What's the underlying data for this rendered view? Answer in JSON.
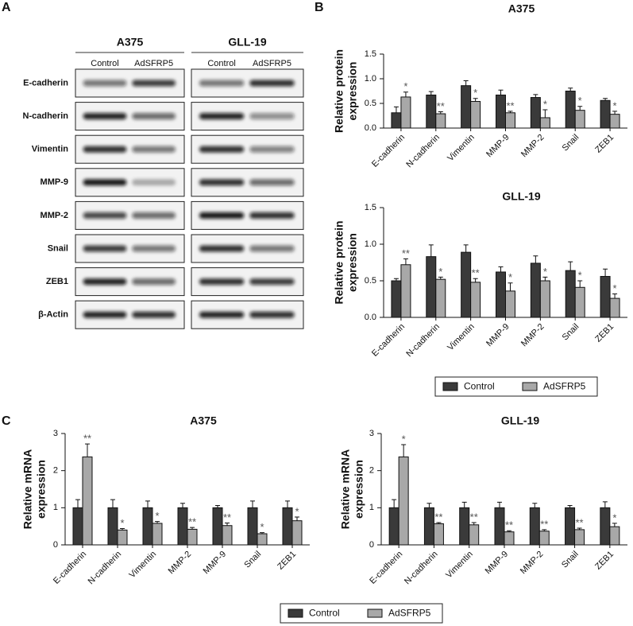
{
  "panels": [
    "A",
    "B",
    "C"
  ],
  "blot": {
    "groups": [
      {
        "name": "A375",
        "conditions": [
          "Control",
          "AdSFRP5"
        ]
      },
      {
        "name": "GLL-19",
        "conditions": [
          "Control",
          "AdSFRP5"
        ]
      }
    ],
    "proteins": [
      "E-cadherin",
      "N-cadherin",
      "Vimentin",
      "MMP-9",
      "MMP-2",
      "Snail",
      "ZEB1",
      "β-Actin"
    ]
  },
  "chart_data": [
    {
      "type": "bar",
      "title": "A375",
      "ylabel": [
        "Relative protein",
        "expression"
      ],
      "categories": [
        "E-cadherin",
        "N-cadherin",
        "Vimentin",
        "MMP-9",
        "MMP-2",
        "Snail",
        "ZEB1"
      ],
      "ylim": [
        0,
        1.5
      ],
      "yticks": [
        {
          "value": 0,
          "label": "0.0"
        },
        0.5,
        {
          "value": 1,
          "label": "1.0"
        },
        1.5
      ],
      "series": [
        {
          "name": "Control",
          "color": "#3a3a3a",
          "values": [
            0.31,
            0.67,
            0.86,
            0.67,
            0.62,
            0.75,
            0.56
          ],
          "errors": [
            0.12,
            0.07,
            0.1,
            0.1,
            0.06,
            0.06,
            0.04
          ]
        },
        {
          "name": "AdSFRP5",
          "color": "#a8a8a8",
          "values": [
            0.63,
            0.29,
            0.54,
            0.31,
            0.21,
            0.36,
            0.28
          ],
          "errors": [
            0.1,
            0.04,
            0.06,
            0.03,
            0.16,
            0.08,
            0.06
          ],
          "annotations": [
            "*",
            "**",
            "*",
            "**",
            "*",
            "*",
            "*"
          ]
        }
      ]
    },
    {
      "type": "bar",
      "title": "GLL-19",
      "ylabel": [
        "Relative protein",
        "expression"
      ],
      "categories": [
        "E-cadherin",
        "N-cadherin",
        "Vimentin",
        "MMP-9",
        "MMP-2",
        "Snail",
        "ZEB1"
      ],
      "ylim": [
        0,
        1.5
      ],
      "yticks": [
        {
          "value": 0,
          "label": "0.0"
        },
        0.5,
        {
          "value": 1,
          "label": "1.0"
        },
        1.5
      ],
      "series": [
        {
          "name": "Control",
          "color": "#3a3a3a",
          "values": [
            0.5,
            0.83,
            0.89,
            0.62,
            0.74,
            0.64,
            0.56
          ],
          "errors": [
            0.03,
            0.16,
            0.1,
            0.07,
            0.1,
            0.12,
            0.1
          ]
        },
        {
          "name": "AdSFRP5",
          "color": "#a8a8a8",
          "values": [
            0.72,
            0.52,
            0.48,
            0.36,
            0.5,
            0.41,
            0.26
          ],
          "errors": [
            0.08,
            0.03,
            0.05,
            0.11,
            0.05,
            0.09,
            0.06
          ],
          "annotations": [
            "**",
            "*",
            "**",
            "*",
            "*",
            "*",
            "*"
          ]
        }
      ]
    },
    {
      "type": "bar",
      "title": "A375",
      "ylabel": [
        "Relative mRNA",
        "expression"
      ],
      "categories": [
        "E-cadherin",
        "N-cadherin",
        "Vimentin",
        "MMP-2",
        "MMP-9",
        "Snail",
        "ZEB1"
      ],
      "ylim": [
        0,
        3
      ],
      "yticks": [
        0,
        1,
        2,
        3
      ],
      "series": [
        {
          "name": "Control",
          "color": "#3a3a3a",
          "values": [
            1,
            1,
            1,
            1,
            1,
            1,
            1
          ],
          "errors": [
            0.22,
            0.22,
            0.18,
            0.12,
            0.06,
            0.18,
            0.18
          ]
        },
        {
          "name": "AdSFRP5",
          "color": "#a8a8a8",
          "values": [
            2.37,
            0.4,
            0.58,
            0.42,
            0.52,
            0.3,
            0.65
          ],
          "errors": [
            0.35,
            0.04,
            0.05,
            0.05,
            0.07,
            0.03,
            0.1
          ],
          "annotations": [
            "**",
            "*",
            "*",
            "**",
            "**",
            "*",
            "*"
          ]
        }
      ]
    },
    {
      "type": "bar",
      "title": "GLL-19",
      "ylabel": [
        "Relative mRNA",
        "expression"
      ],
      "categories": [
        "E-cadherin",
        "N-cadherin",
        "Vimentin",
        "MMP-9",
        "MMP-2",
        "Snail",
        "ZEB1"
      ],
      "ylim": [
        0,
        3
      ],
      "yticks": [
        0,
        1,
        2,
        3
      ],
      "series": [
        {
          "name": "Control",
          "color": "#3a3a3a",
          "values": [
            1,
            1,
            1,
            1,
            1,
            1,
            1
          ],
          "errors": [
            0.22,
            0.12,
            0.15,
            0.15,
            0.12,
            0.06,
            0.16
          ]
        },
        {
          "name": "AdSFRP5",
          "color": "#a8a8a8",
          "values": [
            2.37,
            0.57,
            0.54,
            0.35,
            0.37,
            0.41,
            0.49
          ],
          "errors": [
            0.33,
            0.03,
            0.06,
            0.03,
            0.04,
            0.04,
            0.09
          ],
          "annotations": [
            "*",
            "**",
            "**",
            "**",
            "**",
            "**",
            "*"
          ]
        }
      ]
    }
  ]
}
